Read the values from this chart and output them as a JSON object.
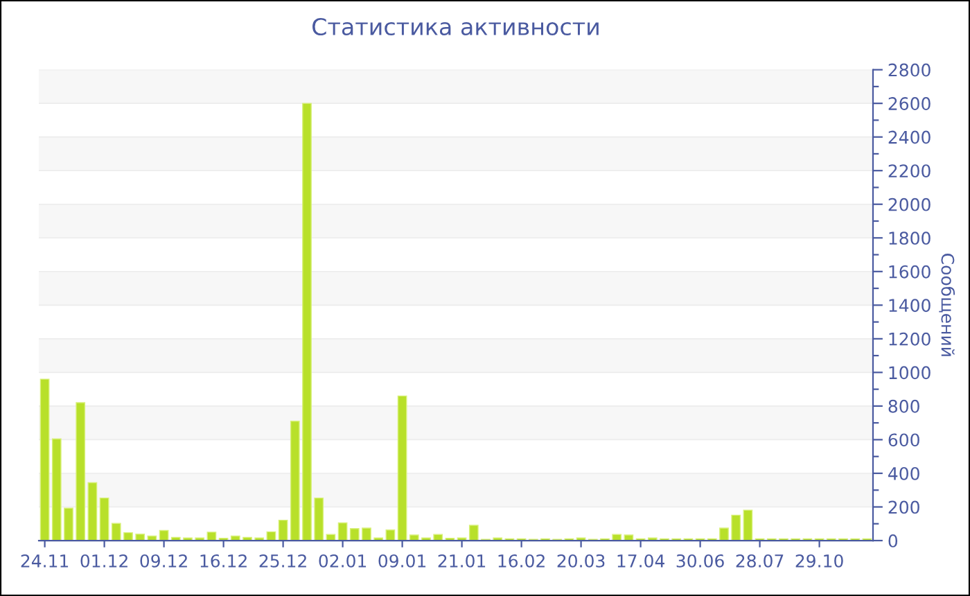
{
  "chart_data": {
    "type": "bar",
    "title": "Статистика активности",
    "ylabel": "Сообщений",
    "categories": [
      "24.11",
      null,
      null,
      null,
      null,
      "01.12",
      null,
      null,
      null,
      null,
      "09.12",
      null,
      null,
      null,
      null,
      "16.12",
      null,
      null,
      null,
      null,
      "25.12",
      null,
      null,
      null,
      null,
      "02.01",
      null,
      null,
      null,
      null,
      "09.01",
      null,
      null,
      null,
      null,
      "21.01",
      null,
      null,
      null,
      null,
      "16.02",
      null,
      null,
      null,
      null,
      "20.03",
      null,
      null,
      null,
      null,
      "17.04",
      null,
      null,
      null,
      null,
      "30.06",
      null,
      null,
      null,
      null,
      "28.07",
      null,
      null,
      null,
      null,
      "29.10",
      null,
      null,
      null,
      null
    ],
    "values": [
      960,
      605,
      193,
      820,
      344,
      253,
      102,
      47,
      38,
      27,
      60,
      19,
      16,
      16,
      50,
      14,
      27,
      19,
      16,
      52,
      121,
      710,
      2600,
      253,
      36,
      105,
      71,
      74,
      16,
      63,
      860,
      33,
      16,
      36,
      14,
      16,
      91,
      8,
      16,
      11,
      11,
      8,
      11,
      8,
      11,
      16,
      8,
      11,
      36,
      33,
      11,
      16,
      11,
      11,
      11,
      11,
      11,
      74,
      151,
      181,
      11,
      11,
      11,
      11,
      11,
      11,
      11,
      11,
      11,
      11
    ],
    "color": "#b8e02a",
    "ylim": [
      0,
      2800
    ],
    "yticks": [
      0,
      {
        "value": 100,
        "label": null
      },
      200,
      {
        "value": 300,
        "label": null
      },
      400,
      {
        "value": 500,
        "label": null
      },
      600,
      {
        "value": 700,
        "label": null
      },
      800,
      {
        "value": 900,
        "label": null
      },
      1000,
      {
        "value": 1100,
        "label": null
      },
      1200,
      {
        "value": 1300,
        "label": null
      },
      1400,
      {
        "value": 1500,
        "label": null
      },
      1600,
      {
        "value": 1700,
        "label": null
      },
      1800,
      {
        "value": 1900,
        "label": null
      },
      2000,
      {
        "value": 2100,
        "label": null
      },
      2200,
      {
        "value": 2300,
        "label": null
      },
      2400,
      {
        "value": 2500,
        "label": null
      },
      2600,
      {
        "value": 2700,
        "label": null
      },
      2800
    ],
    "grid": "y",
    "legend": false
  }
}
